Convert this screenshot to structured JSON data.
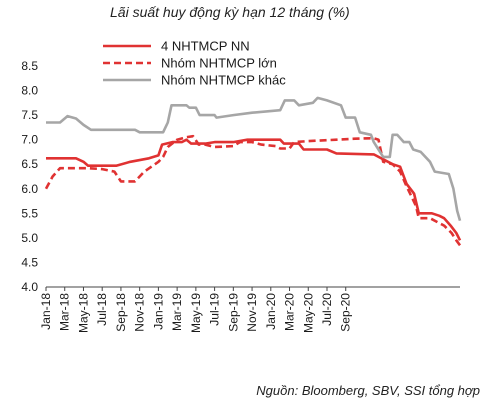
{
  "chart_data": {
    "type": "line",
    "title": "Lãi suất huy động kỳ hạn 12 tháng (%)",
    "source": "Nguồn: Bloomberg, SBV, SSI tổng hợp",
    "ylim": [
      4.0,
      8.5
    ],
    "yticks": [
      "4.0",
      "4.5",
      "5.0",
      "5.5",
      "6.0",
      "6.5",
      "7.0",
      "7.5",
      "8.0",
      "8.5"
    ],
    "xticks": [
      "Jan-18",
      "Mar-18",
      "May-18",
      "Jul-18",
      "Sep-18",
      "Nov-18",
      "Jan-19",
      "Mar-19",
      "May-19",
      "Jul-19",
      "Sep-19",
      "Nov-19",
      "Jan-20",
      "Mar-20",
      "May-20",
      "Jul-20",
      "Sep-20"
    ],
    "grid": false,
    "legend_position": "top-center",
    "x_unit": "months since Jan-18",
    "series": [
      {
        "name": "4 NHTMCP NN",
        "style": "solid",
        "color": "#e03232",
        "points": [
          [
            0,
            6.62
          ],
          [
            3.2,
            6.62
          ],
          [
            4,
            6.55
          ],
          [
            4.5,
            6.47
          ],
          [
            7.5,
            6.47
          ],
          [
            9,
            6.55
          ],
          [
            11,
            6.62
          ],
          [
            12,
            6.68
          ],
          [
            12.4,
            6.9
          ],
          [
            13.5,
            6.95
          ],
          [
            14.5,
            6.95
          ],
          [
            15,
            7.0
          ],
          [
            15.5,
            6.92
          ],
          [
            17,
            6.92
          ],
          [
            18,
            6.95
          ],
          [
            20,
            6.95
          ],
          [
            21.5,
            7.0
          ],
          [
            25,
            7.0
          ],
          [
            25.4,
            6.92
          ],
          [
            27,
            6.92
          ],
          [
            27.5,
            6.8
          ],
          [
            30,
            6.8
          ],
          [
            31,
            6.72
          ],
          [
            35,
            6.7
          ],
          [
            36,
            6.6
          ],
          [
            37,
            6.5
          ],
          [
            37.8,
            6.45
          ],
          [
            38.5,
            6.1
          ],
          [
            39.3,
            5.9
          ],
          [
            39.8,
            5.5
          ],
          [
            41.2,
            5.5
          ],
          [
            42,
            5.45
          ],
          [
            42.5,
            5.4
          ],
          [
            43.2,
            5.25
          ],
          [
            43.8,
            5.1
          ],
          [
            44.2,
            4.95
          ]
        ]
      },
      {
        "name": "Nhóm NHTMCP lớn",
        "style": "dashed",
        "color": "#e03232",
        "points": [
          [
            0,
            6.0
          ],
          [
            0.7,
            6.25
          ],
          [
            1.5,
            6.42
          ],
          [
            4.5,
            6.42
          ],
          [
            6,
            6.4
          ],
          [
            7.3,
            6.35
          ],
          [
            8,
            6.15
          ],
          [
            9.5,
            6.15
          ],
          [
            10.5,
            6.35
          ],
          [
            12,
            6.55
          ],
          [
            12.5,
            6.65
          ],
          [
            13,
            6.85
          ],
          [
            14,
            7.0
          ],
          [
            15,
            7.05
          ],
          [
            15.7,
            7.07
          ],
          [
            16.3,
            6.9
          ],
          [
            17,
            6.9
          ],
          [
            18,
            6.85
          ],
          [
            20,
            6.87
          ],
          [
            20.7,
            6.95
          ],
          [
            22,
            6.95
          ],
          [
            23,
            6.9
          ],
          [
            24.5,
            6.87
          ],
          [
            25,
            6.82
          ],
          [
            26,
            6.82
          ],
          [
            26.5,
            6.95
          ],
          [
            28,
            6.97
          ],
          [
            31,
            7.0
          ],
          [
            33,
            7.02
          ],
          [
            35,
            7.03
          ],
          [
            35.5,
            7.0
          ],
          [
            36,
            6.55
          ],
          [
            37,
            6.5
          ],
          [
            37.8,
            6.35
          ],
          [
            38.5,
            6.05
          ],
          [
            39.5,
            5.65
          ],
          [
            39.8,
            5.4
          ],
          [
            41,
            5.4
          ],
          [
            42.5,
            5.25
          ],
          [
            43.3,
            5.1
          ],
          [
            43.8,
            4.95
          ],
          [
            44.2,
            4.85
          ]
        ]
      },
      {
        "name": "Nhóm NHTMCP khác",
        "style": "solid",
        "color": "#a6a6a6",
        "points": [
          [
            0,
            7.35
          ],
          [
            1.5,
            7.35
          ],
          [
            2.3,
            7.48
          ],
          [
            3.2,
            7.43
          ],
          [
            4,
            7.3
          ],
          [
            4.8,
            7.2
          ],
          [
            9.5,
            7.2
          ],
          [
            10,
            7.15
          ],
          [
            12.5,
            7.15
          ],
          [
            13,
            7.35
          ],
          [
            13.4,
            7.7
          ],
          [
            15,
            7.7
          ],
          [
            15.3,
            7.65
          ],
          [
            16,
            7.65
          ],
          [
            16.4,
            7.5
          ],
          [
            18,
            7.5
          ],
          [
            18.2,
            7.45
          ],
          [
            20,
            7.5
          ],
          [
            22,
            7.55
          ],
          [
            25,
            7.6
          ],
          [
            25.5,
            7.8
          ],
          [
            26.5,
            7.8
          ],
          [
            27,
            7.7
          ],
          [
            28.5,
            7.75
          ],
          [
            29,
            7.85
          ],
          [
            30,
            7.8
          ],
          [
            31.5,
            7.7
          ],
          [
            32,
            7.45
          ],
          [
            33,
            7.45
          ],
          [
            33.5,
            7.15
          ],
          [
            34.7,
            7.1
          ],
          [
            35,
            6.95
          ],
          [
            35.5,
            6.8
          ],
          [
            36,
            6.65
          ],
          [
            36.7,
            6.65
          ],
          [
            37,
            7.1
          ],
          [
            37.5,
            7.1
          ],
          [
            38.2,
            6.95
          ],
          [
            38.8,
            6.95
          ],
          [
            39.2,
            6.8
          ],
          [
            40,
            6.75
          ],
          [
            41,
            6.55
          ],
          [
            41.5,
            6.35
          ],
          [
            43,
            6.3
          ],
          [
            43.5,
            6.0
          ],
          [
            43.9,
            5.55
          ],
          [
            44.2,
            5.35
          ]
        ]
      }
    ]
  }
}
